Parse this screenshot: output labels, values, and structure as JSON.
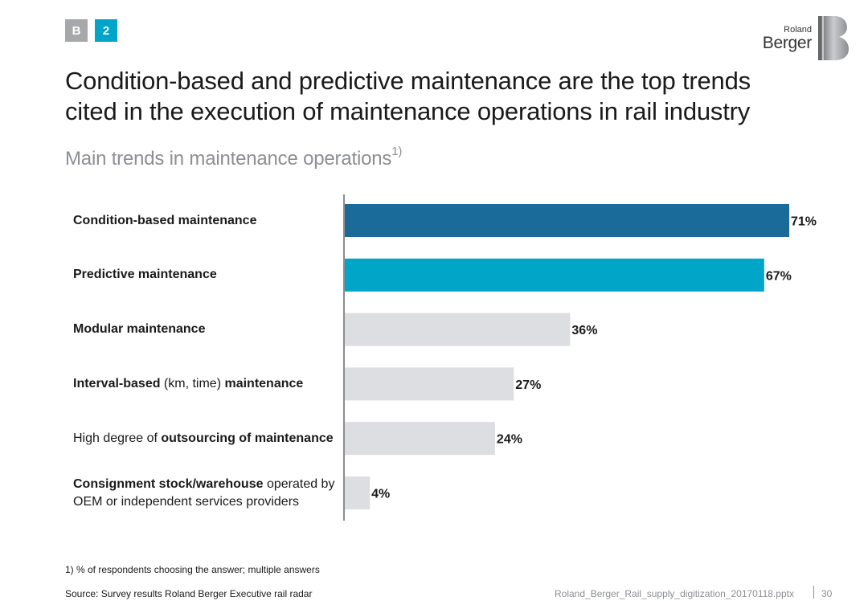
{
  "header": {
    "section_badge": "B",
    "number_badge": "2",
    "title": "Condition-based and predictive maintenance are the top trends cited in the execution of maintenance operations in rail industry",
    "subtitle": "Main trends in maintenance operations",
    "subtitle_footnote_marker": "1)"
  },
  "logo": {
    "line1": "Roland",
    "line2": "Berger"
  },
  "chart_data": {
    "type": "bar",
    "orientation": "horizontal",
    "title": "Main trends in maintenance operations",
    "xlim": [
      0,
      71
    ],
    "categories": [
      "Condition-based maintenance",
      "Predictive maintenance",
      "Modular maintenance",
      "Interval-based (km, time) maintenance",
      "High degree of outsourcing of maintenance",
      "Consignment stock/warehouse operated by OEM or independent services providers"
    ],
    "category_parts": [
      [
        {
          "text": "Condition-based maintenance",
          "bold": true
        }
      ],
      [
        {
          "text": "Predictive maintenance",
          "bold": true
        }
      ],
      [
        {
          "text": "Modular maintenance",
          "bold": true
        }
      ],
      [
        {
          "text": "Interval-based",
          "bold": true
        },
        {
          "text": " (km, time) ",
          "bold": false
        },
        {
          "text": "maintenance",
          "bold": true
        }
      ],
      [
        {
          "text": "High degree of ",
          "bold": false
        },
        {
          "text": "outsourcing of maintenance",
          "bold": true
        }
      ],
      [
        {
          "text": "Consignment stock/warehouse",
          "bold": true
        },
        {
          "text": " operated by OEM or independent services providers",
          "bold": false
        }
      ]
    ],
    "values": [
      71,
      67,
      36,
      27,
      24,
      4
    ],
    "value_labels": [
      "71%",
      "67%",
      "36%",
      "27%",
      "24%",
      "4%"
    ],
    "colors": [
      "#1b6b9a",
      "#00a5c8",
      "#dcdee2",
      "#dcdee2",
      "#dcdee2",
      "#dcdee2"
    ],
    "axis_color": "#1a1a1a"
  },
  "footer": {
    "footnote": "1) % of respondents choosing the answer; multiple answers",
    "source": "Source: Survey results Roland Berger Executive rail radar",
    "document": "Roland_Berger_Rail_supply_digitization_20170118.pptx",
    "page": "30"
  }
}
